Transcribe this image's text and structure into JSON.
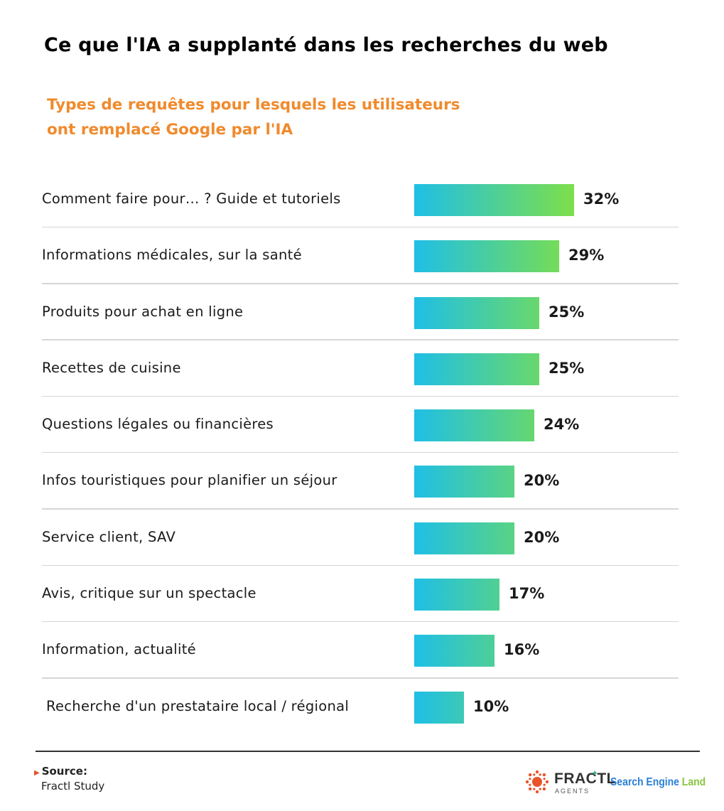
{
  "title": "Ce que l'IA a supplanté dans les recherches du web",
  "subtitle_line1": "Types de requêtes pour lesquels les utilisateurs",
  "subtitle_line2": "ont remplacé Google par l'IA",
  "chart_data": {
    "type": "bar",
    "orientation": "horizontal",
    "title": "Ce que l'IA a supplanté dans les recherches du web",
    "subtitle": "Types de requêtes pour lesquels les utilisateurs ont remplacé Google par l'IA",
    "categories": [
      "Comment faire pour… ? Guide et tutoriels",
      "Informations médicales, sur la santé",
      "Produits pour achat en ligne",
      "Recettes de cuisine",
      "Questions légales ou financières",
      "Infos touristiques pour planifier un séjour",
      "Service client, SAV",
      "Avis, critique sur un spectacle",
      "Information, actualité",
      "Recherche d'un prestataire local / régional"
    ],
    "values": [
      32,
      29,
      25,
      25,
      24,
      20,
      20,
      17,
      16,
      10
    ],
    "value_labels": [
      "32%",
      "29%",
      "25%",
      "25%",
      "24%",
      "20%",
      "20%",
      "17%",
      "16%",
      "10%"
    ],
    "unit": "%",
    "xlim": [
      0,
      32
    ],
    "grid": false,
    "legend": "none",
    "bar_gradient": [
      "#1fbfe6",
      "#7ddf4a"
    ]
  },
  "footer": {
    "source_label": "Source:",
    "source_value": "Fractl Study",
    "logo_fractl": "FRACTL",
    "logo_fractl_sub": "AGENTS",
    "logo_sel_part1": "Search Engine",
    "logo_sel_part2": "Land"
  }
}
